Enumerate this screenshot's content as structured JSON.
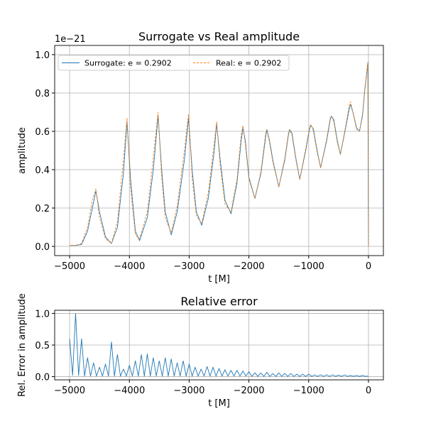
{
  "chart_data": [
    {
      "type": "line",
      "title": "Surrogate vs Real amplitude",
      "xlabel": "t [M]",
      "ylabel": "amplitude",
      "y_offset_label": "1e−21",
      "x": [
        -5000,
        -4900,
        -4800,
        -4700,
        -4620,
        -4560,
        -4500,
        -4400,
        -4300,
        -4200,
        -4100,
        -4040,
        -3980,
        -3900,
        -3830,
        -3700,
        -3600,
        -3520,
        -3460,
        -3400,
        -3300,
        -3200,
        -3080,
        -3010,
        -2950,
        -2880,
        -2790,
        -2680,
        -2580,
        -2540,
        -2480,
        -2400,
        -2300,
        -2200,
        -2130,
        -2100,
        -2060,
        -2000,
        -1900,
        -1800,
        -1720,
        -1700,
        -1660,
        -1600,
        -1500,
        -1400,
        -1340,
        -1320,
        -1280,
        -1220,
        -1150,
        -1050,
        -980,
        -960,
        -920,
        -860,
        -800,
        -700,
        -640,
        -620,
        -580,
        -520,
        -470,
        -380,
        -320,
        -300,
        -260,
        -200,
        -150,
        -100,
        -60,
        -30,
        -10,
        0
      ],
      "series": [
        {
          "name": "Surrogate: e = 0.2902",
          "color": "#1f77b4",
          "linestyle": "solid",
          "values": [
            0.005,
            0.005,
            0.01,
            0.08,
            0.2,
            0.29,
            0.18,
            0.05,
            0.015,
            0.1,
            0.38,
            0.65,
            0.35,
            0.08,
            0.03,
            0.15,
            0.4,
            0.68,
            0.4,
            0.18,
            0.06,
            0.18,
            0.45,
            0.67,
            0.4,
            0.18,
            0.11,
            0.25,
            0.5,
            0.64,
            0.45,
            0.24,
            0.17,
            0.33,
            0.55,
            0.62,
            0.55,
            0.36,
            0.25,
            0.38,
            0.57,
            0.61,
            0.56,
            0.45,
            0.31,
            0.45,
            0.58,
            0.61,
            0.59,
            0.47,
            0.35,
            0.5,
            0.62,
            0.63,
            0.61,
            0.5,
            0.41,
            0.55,
            0.66,
            0.68,
            0.66,
            0.55,
            0.48,
            0.62,
            0.72,
            0.74,
            0.7,
            0.62,
            0.6,
            0.68,
            0.82,
            0.9,
            0.96,
            0.0
          ]
        },
        {
          "name": "Real: e = 0.2902",
          "color": "#ff7f0e",
          "linestyle": "dashed",
          "values": [
            0.005,
            0.005,
            0.015,
            0.1,
            0.24,
            0.3,
            0.15,
            0.04,
            0.015,
            0.13,
            0.45,
            0.67,
            0.3,
            0.06,
            0.04,
            0.18,
            0.46,
            0.7,
            0.36,
            0.15,
            0.07,
            0.21,
            0.5,
            0.69,
            0.36,
            0.16,
            0.12,
            0.28,
            0.54,
            0.65,
            0.42,
            0.22,
            0.18,
            0.35,
            0.58,
            0.63,
            0.53,
            0.35,
            0.25,
            0.39,
            0.59,
            0.61,
            0.55,
            0.44,
            0.31,
            0.46,
            0.59,
            0.61,
            0.58,
            0.46,
            0.35,
            0.51,
            0.63,
            0.635,
            0.6,
            0.49,
            0.41,
            0.56,
            0.67,
            0.68,
            0.65,
            0.54,
            0.48,
            0.63,
            0.74,
            0.755,
            0.7,
            0.61,
            0.6,
            0.69,
            0.83,
            0.9,
            0.96,
            0.0
          ]
        }
      ],
      "xlim": [
        -5250,
        250
      ],
      "ylim": [
        -0.048,
        1.048
      ],
      "xticks": [
        {
          "value": -5000,
          "label": "−5000"
        },
        {
          "value": -4000,
          "label": "−4000"
        },
        {
          "value": -3000,
          "label": "−3000"
        },
        {
          "value": -2000,
          "label": "−2000"
        },
        {
          "value": -1000,
          "label": "−1000"
        },
        0
      ],
      "yticks": [
        {
          "value": 0,
          "label": "0.0"
        },
        {
          "value": 0.2,
          "label": "0.2"
        },
        {
          "value": 0.4,
          "label": "0.4"
        },
        {
          "value": 0.6,
          "label": "0.6"
        },
        {
          "value": 0.8,
          "label": "0.8"
        },
        {
          "value": 1,
          "label": "1.0"
        }
      ],
      "grid": true,
      "legend": "upper left",
      "legend_columns": 2
    },
    {
      "type": "line",
      "title": "Relative error",
      "xlabel": "t [M]",
      "ylabel": "Rel. Error in amplitude",
      "x": [
        -5000,
        -4950,
        -4900,
        -4850,
        -4800,
        -4750,
        -4700,
        -4650,
        -4600,
        -4550,
        -4500,
        -4450,
        -4400,
        -4350,
        -4300,
        -4250,
        -4200,
        -4150,
        -4100,
        -4050,
        -4000,
        -3950,
        -3900,
        -3850,
        -3800,
        -3750,
        -3700,
        -3650,
        -3600,
        -3550,
        -3500,
        -3450,
        -3400,
        -3350,
        -3300,
        -3250,
        -3200,
        -3150,
        -3100,
        -3050,
        -3000,
        -2950,
        -2900,
        -2850,
        -2800,
        -2750,
        -2700,
        -2650,
        -2600,
        -2550,
        -2500,
        -2450,
        -2400,
        -2350,
        -2300,
        -2250,
        -2200,
        -2150,
        -2100,
        -2050,
        -2000,
        -1950,
        -1900,
        -1850,
        -1800,
        -1750,
        -1700,
        -1650,
        -1600,
        -1550,
        -1500,
        -1450,
        -1400,
        -1350,
        -1300,
        -1250,
        -1200,
        -1150,
        -1100,
        -1050,
        -1000,
        -950,
        -900,
        -850,
        -800,
        -750,
        -700,
        -650,
        -600,
        -550,
        -500,
        -450,
        -400,
        -350,
        -300,
        -250,
        -200,
        -150,
        -100,
        -50,
        0
      ],
      "series": [
        {
          "color": "#1f77b4",
          "linestyle": "solid",
          "values": [
            0.6,
            0.02,
            1.0,
            0.02,
            0.6,
            0.01,
            0.3,
            0.01,
            0.22,
            0.01,
            0.15,
            0.01,
            0.2,
            0.01,
            0.55,
            0.01,
            0.35,
            0.01,
            0.12,
            0.01,
            0.18,
            0.01,
            0.25,
            0.01,
            0.35,
            0.01,
            0.36,
            0.01,
            0.3,
            0.01,
            0.25,
            0.01,
            0.3,
            0.01,
            0.28,
            0.01,
            0.22,
            0.01,
            0.25,
            0.01,
            0.2,
            0.01,
            0.15,
            0.01,
            0.12,
            0.01,
            0.16,
            0.01,
            0.15,
            0.01,
            0.13,
            0.01,
            0.11,
            0.01,
            0.1,
            0.01,
            0.1,
            0.01,
            0.09,
            0.01,
            0.08,
            0.005,
            0.06,
            0.005,
            0.06,
            0.005,
            0.07,
            0.005,
            0.05,
            0.005,
            0.06,
            0.005,
            0.05,
            0.005,
            0.05,
            0.005,
            0.04,
            0.005,
            0.04,
            0.005,
            0.04,
            0.005,
            0.03,
            0.005,
            0.03,
            0.005,
            0.03,
            0.005,
            0.03,
            0.005,
            0.025,
            0.005,
            0.03,
            0.005,
            0.02,
            0.005,
            0.02,
            0.005,
            0.02,
            0.005,
            0.01
          ]
        }
      ],
      "xlim": [
        -5250,
        250
      ],
      "ylim": [
        -0.05,
        1.05
      ],
      "xticks": [
        {
          "value": -5000,
          "label": "−5000"
        },
        {
          "value": -4000,
          "label": "−4000"
        },
        {
          "value": -3000,
          "label": "−3000"
        },
        {
          "value": -2000,
          "label": "−2000"
        },
        {
          "value": -1000,
          "label": "−1000"
        },
        0
      ],
      "yticks": [
        {
          "value": 0,
          "label": "0.0"
        },
        {
          "value": 0.5,
          "label": "0.5"
        },
        {
          "value": 1,
          "label": "1.0"
        }
      ],
      "grid": true
    }
  ]
}
